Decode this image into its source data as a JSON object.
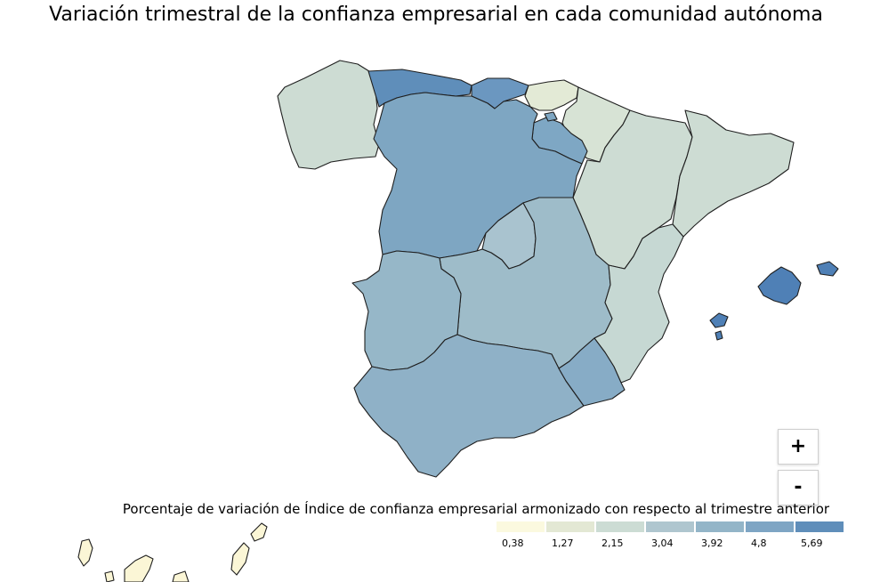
{
  "title": "Variación trimestral de la confianza empresarial en cada comunidad autónoma",
  "legend": {
    "title": "Porcentaje de variación de Índice de confianza empresarial armonizado con respecto al trimestre anterior",
    "colors": [
      "#fbf9df",
      "#e3e8d4",
      "#ccdcd4",
      "#afc6cf",
      "#93b5c8",
      "#7ea5c4",
      "#5f8eba"
    ],
    "labels": [
      "0,38",
      "1,27",
      "2,15",
      "3,04",
      "3,92",
      "4,8",
      "5,69"
    ]
  },
  "zoom": {
    "in_label": "+",
    "out_label": "-"
  },
  "colors": {
    "galicia": "#cddcd3",
    "asturias": "#5f8eba",
    "cantabria": "#6b97c0",
    "pais_vasco": "#e3ead6",
    "navarra": "#d7e3d5",
    "la_rioja": "#7ea7c4",
    "aragon": "#cddcd3",
    "cataluna": "#cddcd3",
    "castilla_leon": "#7ea6c2",
    "madrid": "#a9c3cf",
    "castilla_la_mancha": "#9ebcc9",
    "valencia": "#c6d8d3",
    "extremadura": "#96b7c8",
    "andalucia": "#8fb1c7",
    "murcia": "#87acc6",
    "baleares": "#4f80b6",
    "canarias": "#fbf6d6"
  }
}
